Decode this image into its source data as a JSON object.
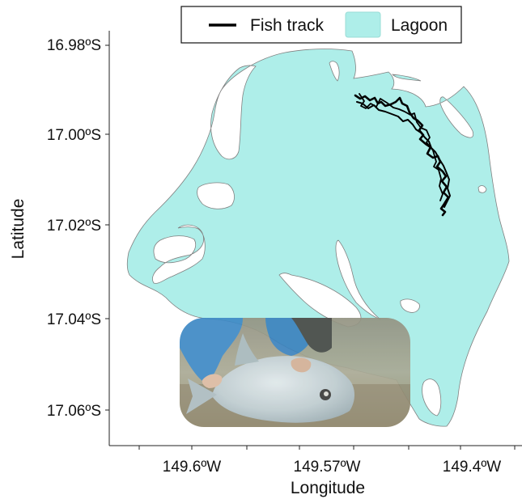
{
  "legend": {
    "track_label": "Fish track",
    "lagoon_label": "Lagoon",
    "track_color": "#000000",
    "lagoon_color": "#aeeee9"
  },
  "axes": {
    "xlabel": "Longitude",
    "ylabel": "Latitude",
    "x_ticks": [
      "149.6ºW",
      "149.57ºW",
      "149.4ºW"
    ],
    "y_ticks": [
      "16.98ºS",
      "17.00ºS",
      "17.02ºS",
      "17.04ºS",
      "17.06ºS"
    ]
  },
  "photo": {
    "subject": "giant trevally held by a person in a blue shirt in shallow water",
    "colors": {
      "sleeve": "#2e7fc0",
      "fish": "#b9c8cc",
      "water": "#9a9a86",
      "sand": "#8a7e62"
    }
  },
  "colors": {
    "lagoon_fill": "#aeeee9",
    "outline": "#808080",
    "track": "#000000",
    "axis": "#222222"
  }
}
